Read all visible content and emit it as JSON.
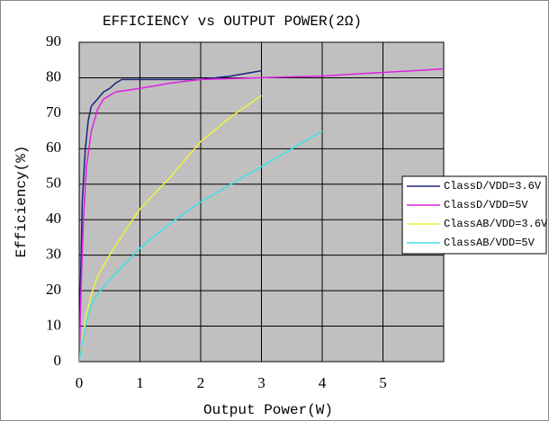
{
  "chart_data": {
    "type": "line",
    "title": "EFFICIENCY vs OUTPUT POWER(2Ω)",
    "x_label": "Output Power(W)",
    "y_label": "Efficiency(%)",
    "xlim": [
      0,
      6
    ],
    "xticks": [
      0,
      1,
      2,
      3,
      4,
      5
    ],
    "ylim": [
      0,
      90
    ],
    "yticks": [
      0,
      10,
      20,
      30,
      40,
      50,
      60,
      70,
      80,
      90
    ],
    "grid": true,
    "legend": "right",
    "series": [
      {
        "name": "ClassD/VDD=3.6V",
        "color": "#1a237e",
        "x": [
          0,
          0.02,
          0.05,
          0.1,
          0.15,
          0.2,
          0.3,
          0.4,
          0.5,
          0.6,
          0.7,
          1,
          2,
          2.5,
          3
        ],
        "values": [
          0,
          20,
          45,
          60,
          68,
          72,
          74,
          76,
          77,
          78.5,
          79.5,
          79.5,
          79.5,
          80.5,
          82
        ]
      },
      {
        "name": "ClassD/VDD=5V",
        "color": "#e020e0",
        "x": [
          0,
          0.03,
          0.07,
          0.12,
          0.2,
          0.3,
          0.4,
          0.6,
          1,
          1.5,
          2,
          3,
          4,
          5,
          5.5,
          6
        ],
        "values": [
          0,
          20,
          40,
          55,
          65,
          71,
          74,
          76,
          77,
          78.5,
          79.5,
          80,
          80.5,
          81.5,
          82,
          82.5
        ]
      },
      {
        "name": "ClassAB/VDD=3.6V",
        "color": "#f0f040",
        "x": [
          0,
          0.1,
          0.2,
          0.3,
          0.5,
          0.8,
          1,
          1.5,
          2,
          2.5,
          3
        ],
        "values": [
          0,
          12,
          19,
          24,
          30,
          38,
          43,
          52,
          62,
          69,
          75
        ]
      },
      {
        "name": "ClassAB/VDD=5V",
        "color": "#40e0e8",
        "x": [
          0,
          0.1,
          0.2,
          0.3,
          0.5,
          1,
          1.5,
          2,
          3,
          4
        ],
        "values": [
          0,
          10,
          16,
          19,
          23,
          32,
          39,
          45,
          55,
          65
        ]
      }
    ]
  }
}
